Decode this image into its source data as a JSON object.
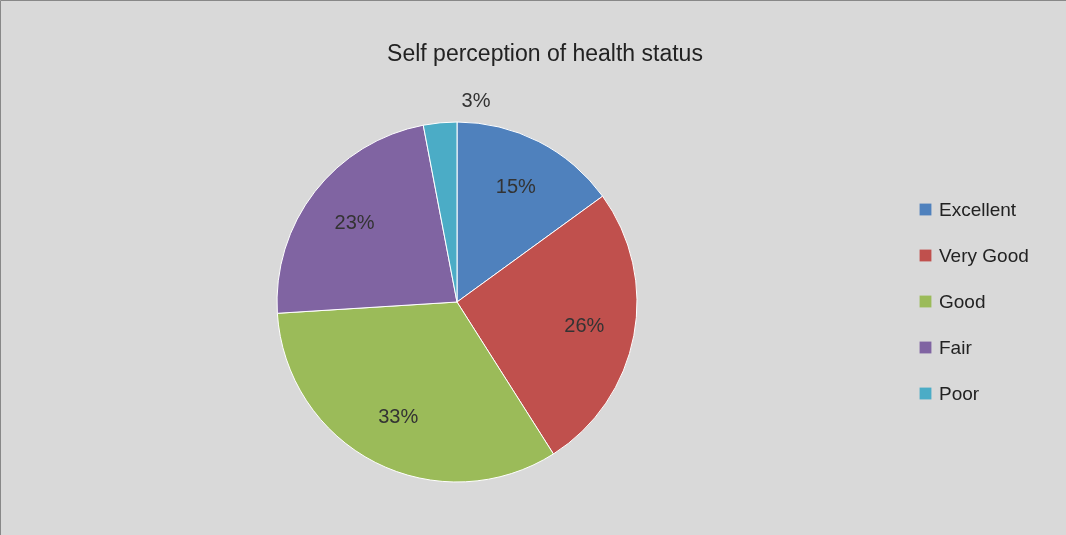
{
  "chart_data": {
    "type": "pie",
    "title": "Self perception of health status",
    "categories": [
      "Excellent",
      "Very Good",
      "Good",
      "Fair",
      "Poor"
    ],
    "values": [
      15,
      26,
      33,
      23,
      3
    ],
    "colors": [
      "#4f81bd",
      "#c0504d",
      "#9bbb59",
      "#8064a2",
      "#4bacc6"
    ],
    "value_labels": [
      "15%",
      "26%",
      "33%",
      "23%",
      "3%"
    ],
    "legend": "right"
  }
}
